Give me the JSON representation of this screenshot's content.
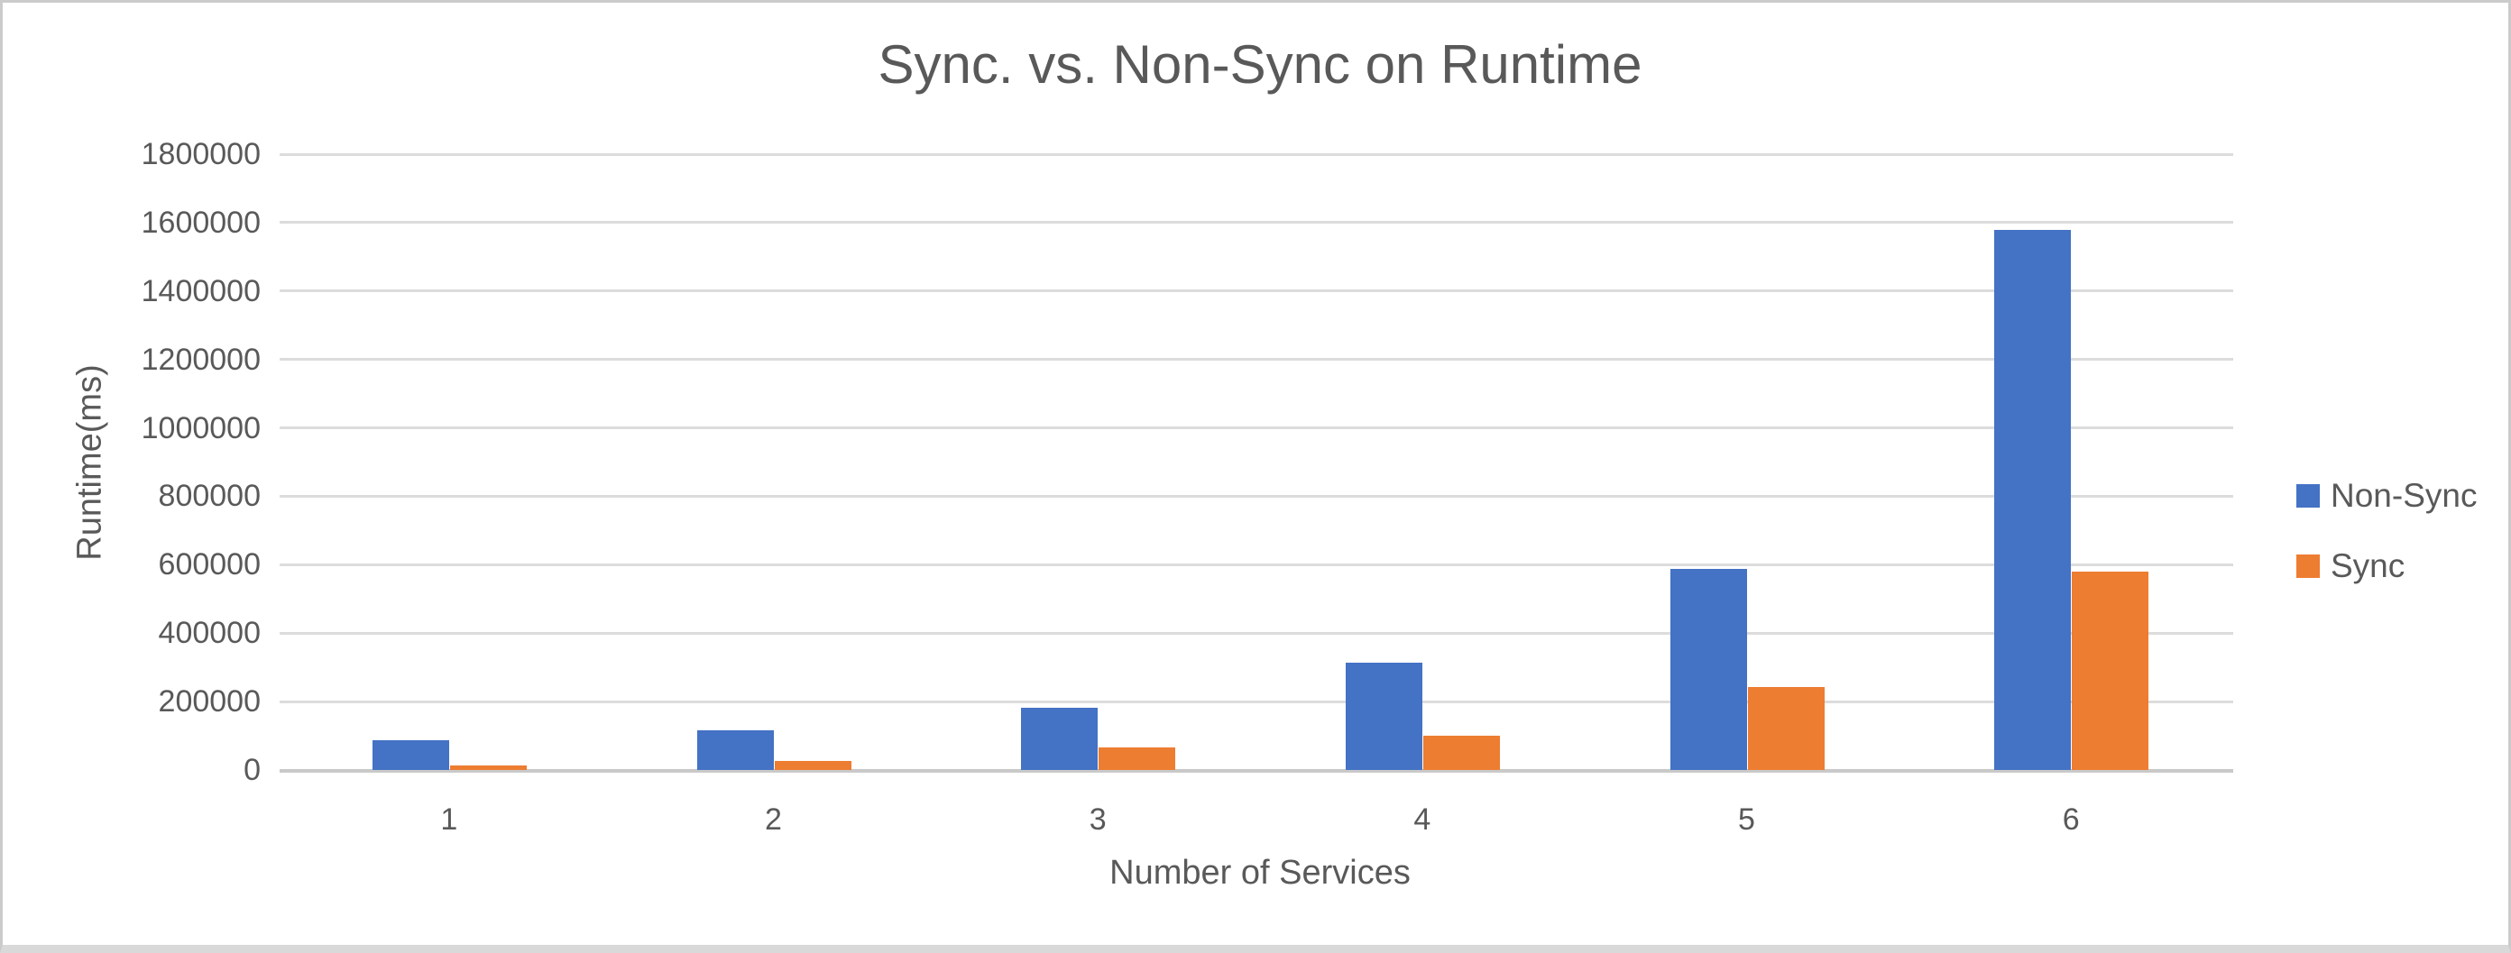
{
  "window": {
    "background": "#FFFFFF",
    "frame_border_color": "#CBCBCB",
    "bottom_strip_color": "#D9D9D9"
  },
  "chart_data": {
    "type": "bar",
    "title": "Sync. vs. Non-Sync on Runtime",
    "xlabel": "Number of Services",
    "ylabel": "Runtime(ms)",
    "categories": [
      "1",
      "2",
      "3",
      "4",
      "5",
      "6"
    ],
    "series": [
      {
        "name": "Non-Sync",
        "color": "#4472C4",
        "values": [
          86000,
          115000,
          181000,
          314000,
          587000,
          1578000
        ]
      },
      {
        "name": "Sync",
        "color": "#ED7D31",
        "values": [
          14000,
          27000,
          66000,
          100000,
          242000,
          581000
        ]
      }
    ],
    "ylim": [
      0,
      1800000
    ],
    "y_ticks": [
      0,
      200000,
      400000,
      600000,
      800000,
      1000000,
      1200000,
      1400000,
      1600000,
      1800000
    ],
    "grid": "horizontal-on",
    "legend_position": "right",
    "text_color": "#595959",
    "gridline_color": "#DCDCDC",
    "axis_line_color": "#C9C9C9"
  }
}
